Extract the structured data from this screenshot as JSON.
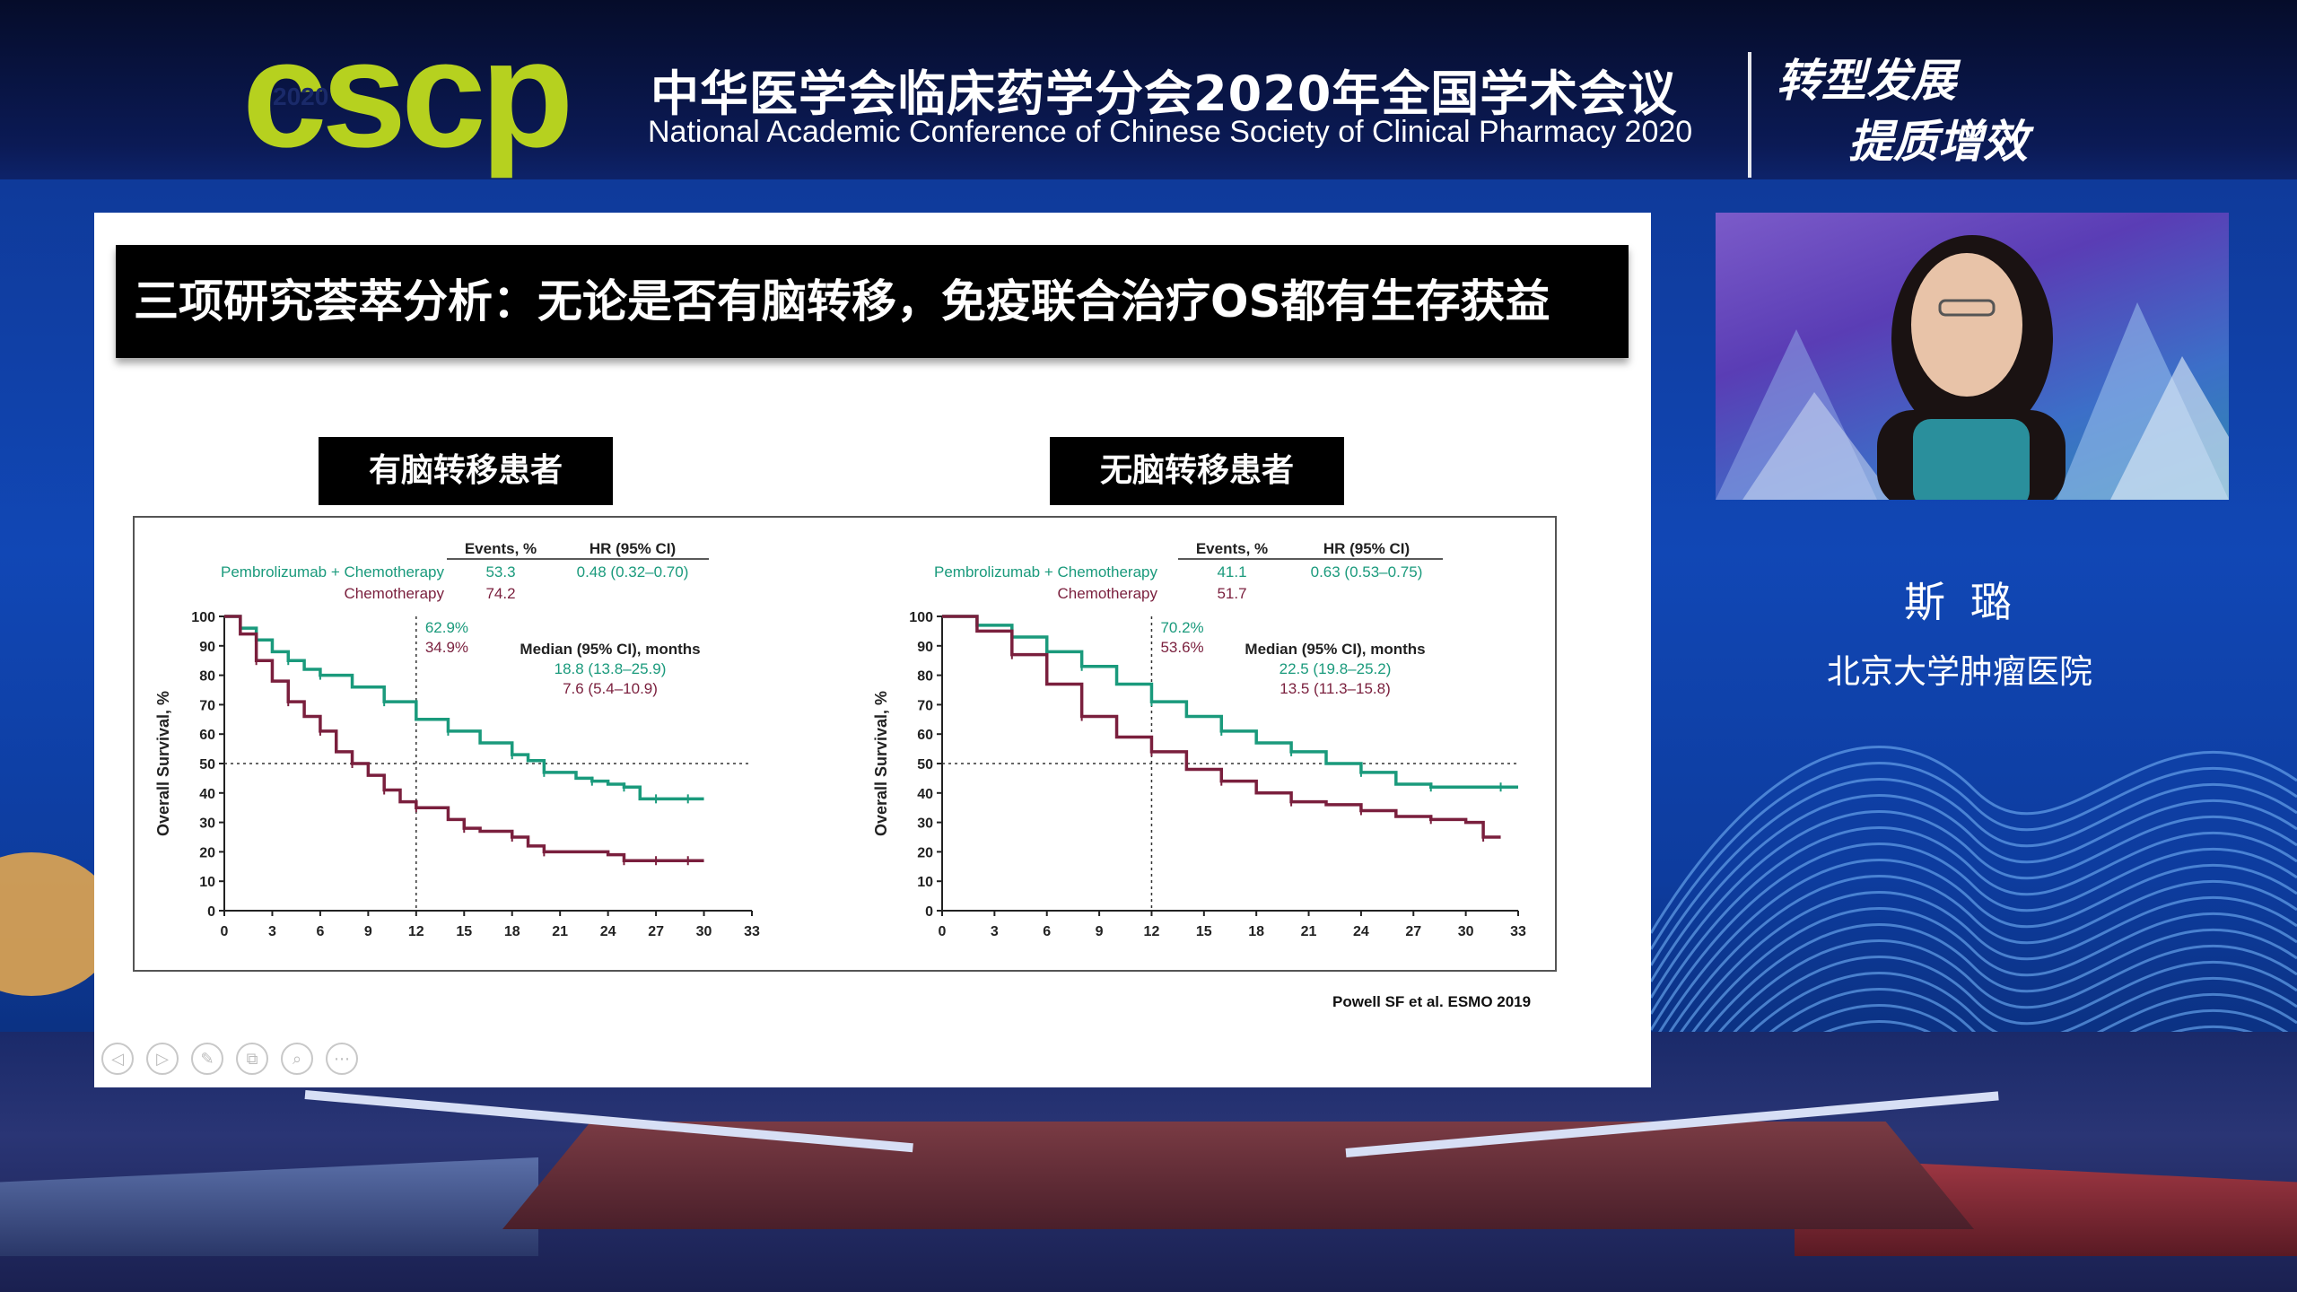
{
  "header": {
    "logo_text": "cscp",
    "logo_year": "2020",
    "title_cn": "中华医学会临床药学分会2020年全国学术会议",
    "title_en": "National Academic Conference of Chinese Society of Clinical Pharmacy 2020",
    "slogan_line1": "转型发展",
    "slogan_line2": "提质增效"
  },
  "slide": {
    "title": "三项研究荟萃分析：无论是否有脑转移，免疫联合治疗OS都有生存获益",
    "panel_left_label": "有脑转移患者",
    "panel_right_label": "无脑转移患者",
    "citation": "Powell SF et al. ESMO 2019",
    "toolbar": [
      "prev-icon",
      "next-icon",
      "pen-icon",
      "copy-icon",
      "zoom-icon",
      "more-icon"
    ]
  },
  "speaker": {
    "name": "斯璐",
    "organization": "北京大学肿瘤医院"
  },
  "colors": {
    "pembro": "#1a9a7c",
    "chemo": "#7a1f3d",
    "logo_green": "#b6d11f",
    "background_blue": "#1147b5"
  },
  "chart_data": [
    {
      "type": "line",
      "title": "有脑转移患者",
      "xlabel": "",
      "ylabel": "Overall Survival, %",
      "xlim": [
        0,
        33
      ],
      "ylim": [
        0,
        100
      ],
      "xticks": [
        0,
        3,
        6,
        9,
        12,
        15,
        18,
        21,
        24,
        27,
        30,
        33
      ],
      "yticks": [
        0,
        10,
        20,
        30,
        40,
        50,
        60,
        70,
        80,
        90,
        100
      ],
      "table_header": {
        "events": "Events, %",
        "hr": "HR (95% CI)"
      },
      "series": [
        {
          "name": "Pembrolizumab + Chemotherapy",
          "events": "53.3",
          "hr": "0.48 (0.32–0.70)",
          "median": "18.8 (13.8–25.9)",
          "rate_12mo": "62.9%",
          "x": [
            0,
            1,
            2,
            3,
            4,
            5,
            6,
            8,
            10,
            12,
            14,
            16,
            18,
            19,
            20,
            22,
            23,
            24,
            25,
            26,
            27,
            28,
            29,
            30
          ],
          "y": [
            100,
            96,
            92,
            88,
            85,
            82,
            80,
            76,
            71,
            65,
            61,
            57,
            53,
            51,
            47,
            45,
            44,
            43,
            42,
            38,
            38,
            38,
            38,
            38
          ]
        },
        {
          "name": "Chemotherapy",
          "events": "74.2",
          "hr": "",
          "median": "7.6 (5.4–10.9)",
          "rate_12mo": "34.9%",
          "x": [
            0,
            1,
            2,
            3,
            4,
            5,
            6,
            7,
            8,
            9,
            10,
            11,
            12,
            14,
            15,
            16,
            18,
            19,
            20,
            24,
            25,
            26,
            27,
            28,
            29,
            30
          ],
          "y": [
            100,
            94,
            85,
            78,
            71,
            66,
            61,
            54,
            50,
            46,
            41,
            37,
            35,
            31,
            28,
            27,
            25,
            22,
            20,
            19,
            17,
            17,
            17,
            17,
            17,
            17
          ]
        }
      ],
      "median_header": "Median (95% CI), months",
      "reference_lines": {
        "y": 50,
        "x": 12
      }
    },
    {
      "type": "line",
      "title": "无脑转移患者",
      "xlabel": "",
      "ylabel": "Overall Survival, %",
      "xlim": [
        0,
        33
      ],
      "ylim": [
        0,
        100
      ],
      "xticks": [
        0,
        3,
        6,
        9,
        12,
        15,
        18,
        21,
        24,
        27,
        30,
        33
      ],
      "yticks": [
        0,
        10,
        20,
        30,
        40,
        50,
        60,
        70,
        80,
        90,
        100
      ],
      "table_header": {
        "events": "Events, %",
        "hr": "HR (95% CI)"
      },
      "series": [
        {
          "name": "Pembrolizumab + Chemotherapy",
          "events": "41.1",
          "hr": "0.63 (0.53–0.75)",
          "median": "22.5 (19.8–25.2)",
          "rate_12mo": "70.2%",
          "x": [
            0,
            2,
            4,
            6,
            8,
            10,
            12,
            14,
            16,
            18,
            20,
            22,
            24,
            26,
            28,
            30,
            32,
            33
          ],
          "y": [
            100,
            97,
            93,
            88,
            83,
            77,
            71,
            66,
            61,
            57,
            54,
            50,
            47,
            43,
            42,
            42,
            42,
            42
          ]
        },
        {
          "name": "Chemotherapy",
          "events": "51.7",
          "hr": "",
          "median": "13.5 (11.3–15.8)",
          "rate_12mo": "53.6%",
          "x": [
            0,
            2,
            4,
            6,
            8,
            10,
            12,
            14,
            16,
            18,
            20,
            22,
            24,
            26,
            28,
            30,
            31,
            32
          ],
          "y": [
            100,
            95,
            87,
            77,
            66,
            59,
            54,
            48,
            44,
            40,
            37,
            36,
            34,
            32,
            31,
            30,
            25,
            25
          ]
        }
      ],
      "median_header": "Median (95% CI), months",
      "reference_lines": {
        "y": 50,
        "x": 12
      }
    }
  ]
}
